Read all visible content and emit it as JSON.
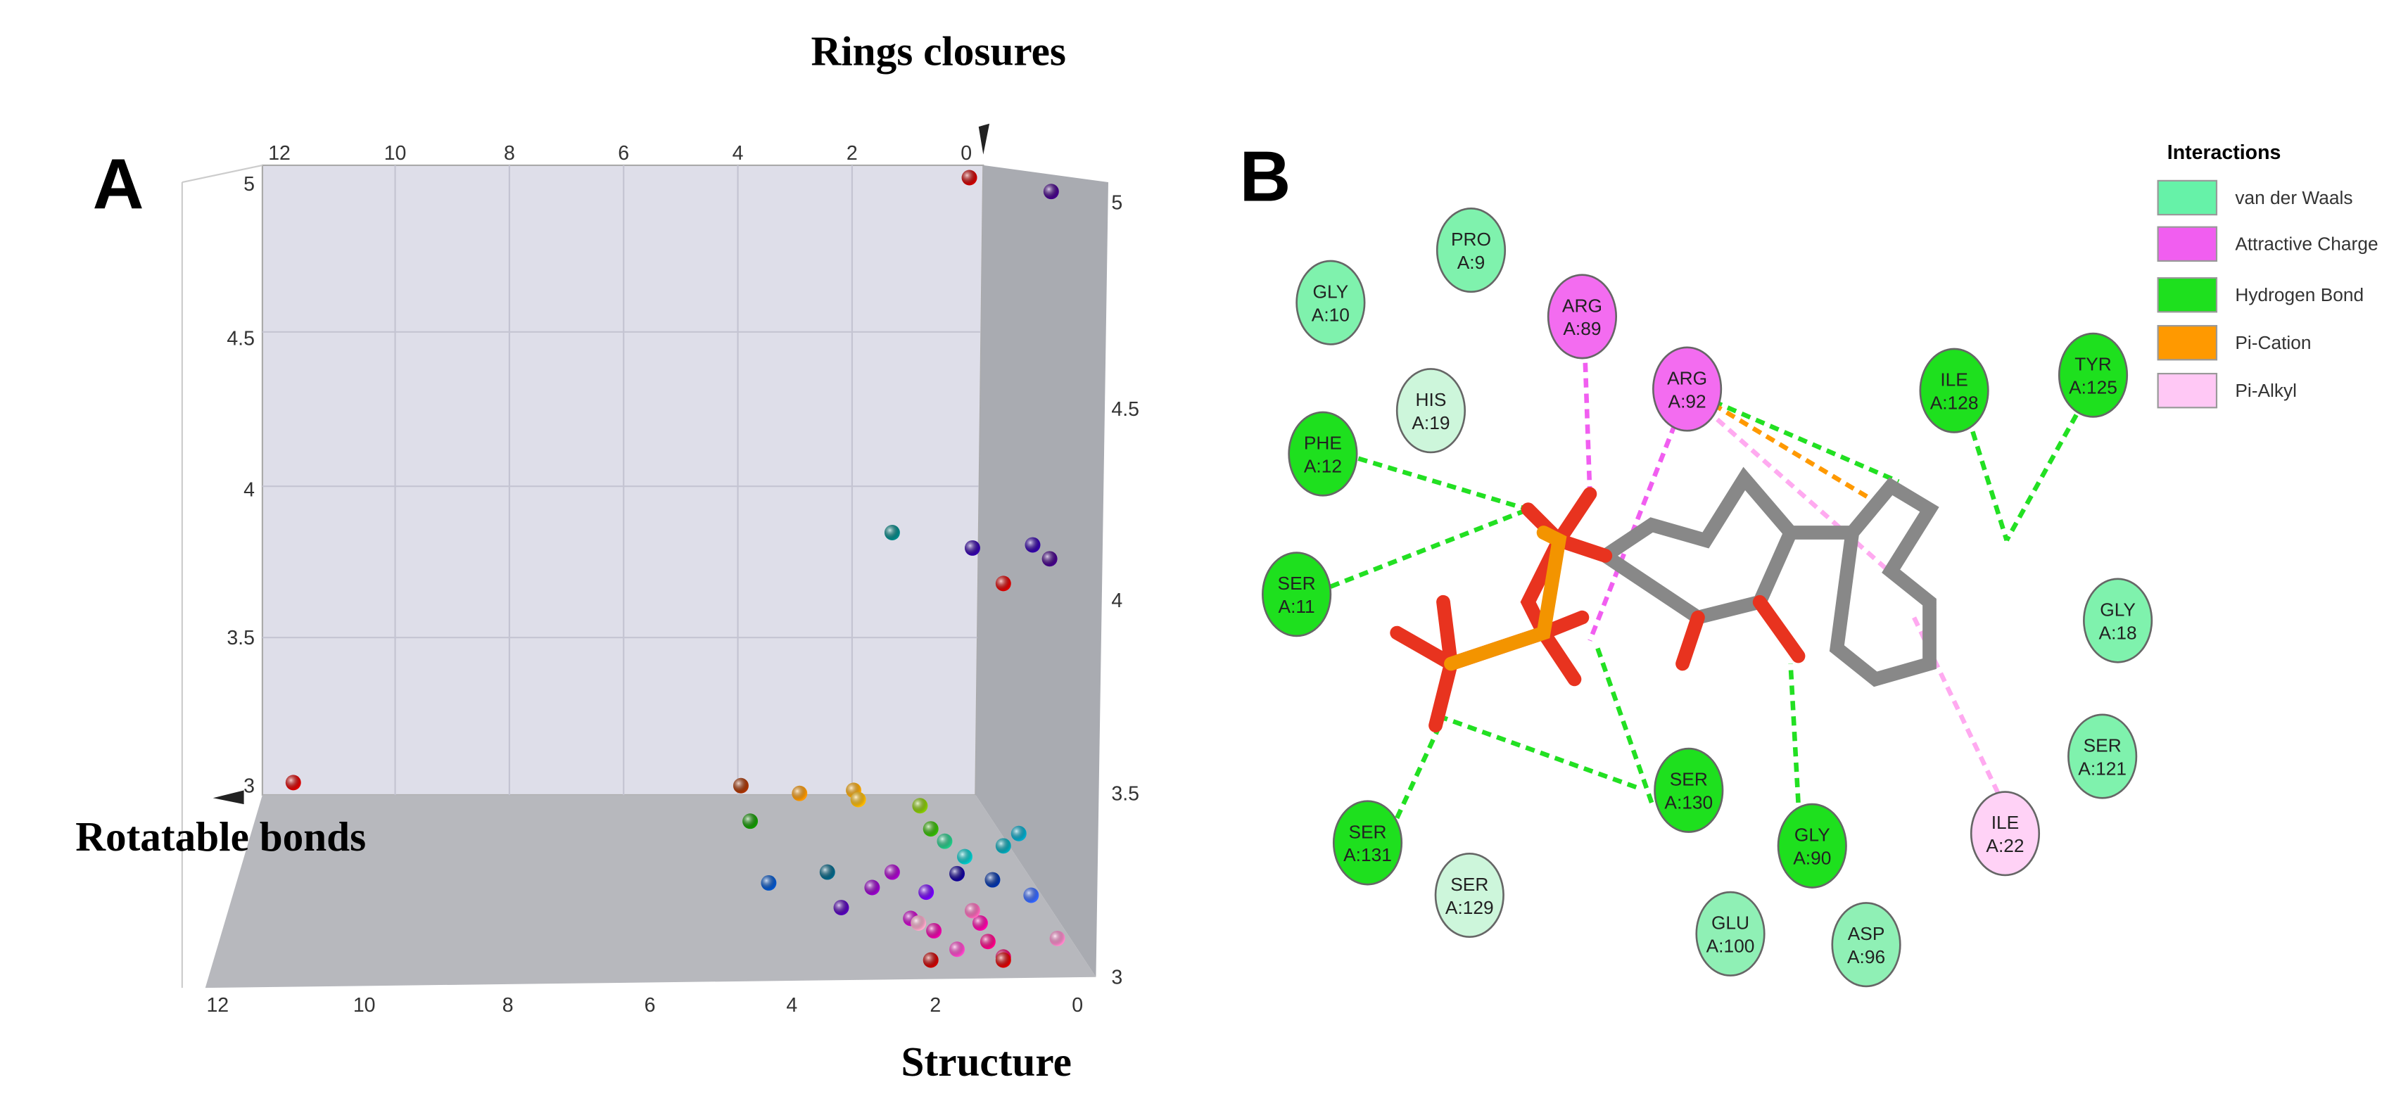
{
  "panel_a": {
    "label": "A",
    "axis_titles": {
      "rings": "Rings closures",
      "rotatable": "Rotatable bonds",
      "structure": "Structure"
    },
    "top_ticks": [
      "12",
      "10",
      "8",
      "6",
      "4",
      "2",
      "0"
    ],
    "bottom_ticks": [
      "12",
      "10",
      "8",
      "6",
      "4",
      "2",
      "0"
    ],
    "left_ticks": [
      "5",
      "4.5",
      "4",
      "3.5",
      "3"
    ],
    "right_ticks": [
      "5",
      "4.5",
      "4",
      "3.5",
      "3"
    ]
  },
  "panel_b": {
    "label": "B",
    "legend": {
      "title": "Interactions",
      "items": [
        {
          "label": "van der Waals",
          "color": "#66f2a8"
        },
        {
          "label": "Attractive Charge",
          "color": "#f15ef0"
        },
        {
          "label": "Hydrogen Bond",
          "color": "#1ee01e"
        },
        {
          "label": "Pi-Cation",
          "color": "#ff9900"
        },
        {
          "label": "Pi-Alkyl",
          "color": "#ffc8f5"
        }
      ]
    },
    "residues": [
      {
        "name": "PRO",
        "id": "A:9",
        "color": "#7ff2ad"
      },
      {
        "name": "GLY",
        "id": "A:10",
        "color": "#7ff2ad"
      },
      {
        "name": "ARG",
        "id": "A:89",
        "color": "#f36cf0"
      },
      {
        "name": "ARG",
        "id": "A:92",
        "color": "#f36cf0"
      },
      {
        "name": "HIS",
        "id": "A:19",
        "color": "#cdf6db"
      },
      {
        "name": "PHE",
        "id": "A:12",
        "color": "#1ee01e"
      },
      {
        "name": "SER",
        "id": "A:11",
        "color": "#1ee01e"
      },
      {
        "name": "ILE",
        "id": "A:128",
        "color": "#1ee01e"
      },
      {
        "name": "TYR",
        "id": "A:125",
        "color": "#1ee01e"
      },
      {
        "name": "GLY",
        "id": "A:18",
        "color": "#7ff2ad"
      },
      {
        "name": "SER",
        "id": "A:121",
        "color": "#7ff2ad"
      },
      {
        "name": "ILE",
        "id": "A:22",
        "color": "#ffd2f6"
      },
      {
        "name": "SER",
        "id": "A:130",
        "color": "#1ee01e"
      },
      {
        "name": "GLY",
        "id": "A:90",
        "color": "#1ee01e"
      },
      {
        "name": "SER",
        "id": "A:131",
        "color": "#1ee01e"
      },
      {
        "name": "SER",
        "id": "A:129",
        "color": "#cdf6db"
      },
      {
        "name": "GLU",
        "id": "A:100",
        "color": "#8ff0b5"
      },
      {
        "name": "ASP",
        "id": "A:96",
        "color": "#8ff0b5"
      }
    ]
  }
}
